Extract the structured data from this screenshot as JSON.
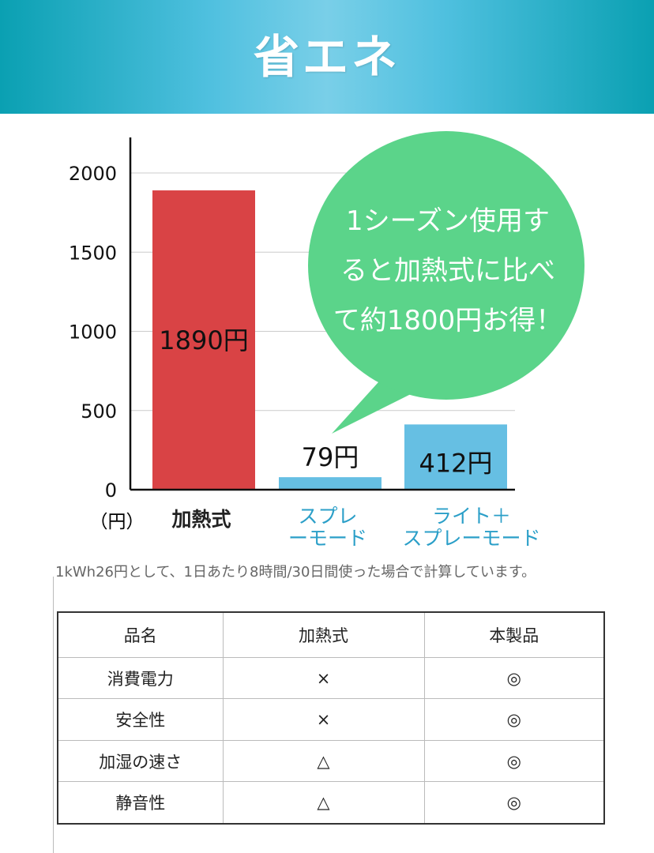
{
  "header": {
    "title": "省エネ"
  },
  "chart_data": {
    "type": "bar",
    "categories": [
      "加熱式",
      "スプレーモード",
      "ライト＋スプレーモード"
    ],
    "values": [
      1890,
      79,
      412
    ],
    "data_labels": [
      "1890円",
      "79円",
      "412円"
    ],
    "ylim": [
      0,
      2200
    ],
    "yticks": [
      0,
      500,
      1000,
      1500,
      2000
    ],
    "ylabel": "（円）",
    "grid": true,
    "colors": [
      "#d94345",
      "#66bfe3",
      "#66bfe3"
    ],
    "category_label_colors": [
      "#222222",
      "#2b9fc8",
      "#2b9fc8"
    ],
    "callout": {
      "lines": [
        "1シーズン使用す",
        "ると加熱式に比べ",
        "て約1800円お得！"
      ],
      "color": "#5bd48a"
    }
  },
  "note": "1kWh26円として、1日あたり8時間/30日間使った場合で計算しています。",
  "table": {
    "headers": [
      "品名",
      "加熱式",
      "本製品"
    ],
    "rows": [
      [
        "消費電力",
        "×",
        "◎"
      ],
      [
        "安全性",
        "×",
        "◎"
      ],
      [
        "加湿の速さ",
        "△",
        "◎"
      ],
      [
        "静音性",
        "△",
        "◎"
      ]
    ]
  }
}
